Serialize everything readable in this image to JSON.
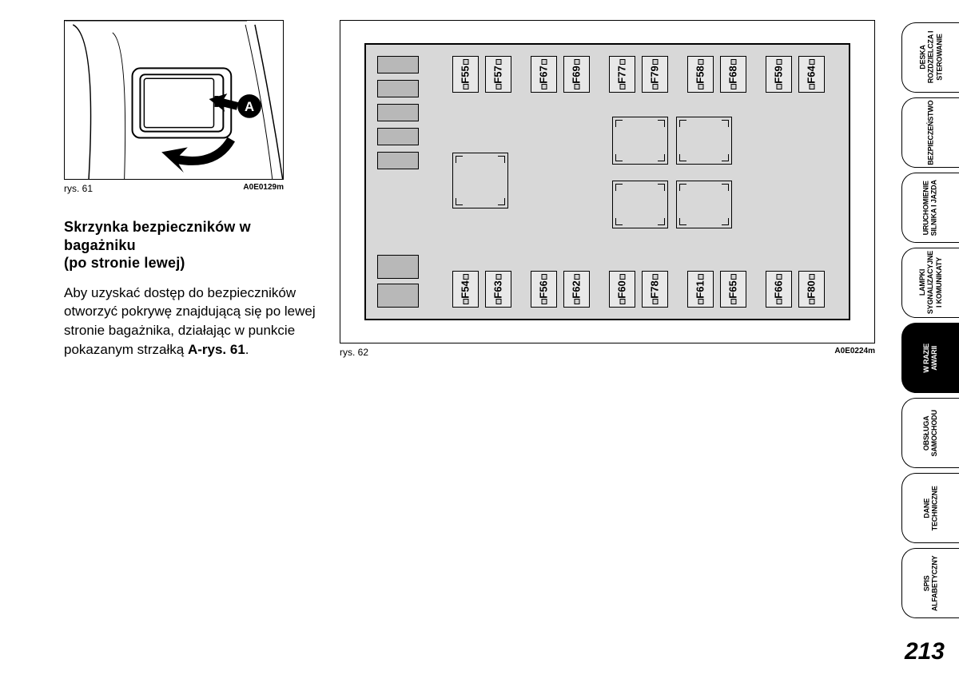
{
  "fig61": {
    "caption": "rys. 61",
    "code": "A0E0129m",
    "label_A": "A"
  },
  "fig62": {
    "caption": "rys. 62",
    "code": "A0E0224m"
  },
  "heading": {
    "line1": "Skrzynka bezpieczników w",
    "line2": "bagażniku",
    "line3": "(po stronie lewej)"
  },
  "body": {
    "text": "Aby uzyskać dostęp do bezpieczników otworzyć pokrywę znajdującą się po lewej stronie bagażnika, działając w punkcie pokazanym strzałką ",
    "bold": "A-rys. 61",
    "tail": "."
  },
  "fuses_top": [
    "F55",
    "F57",
    "F67",
    "F69",
    "F77",
    "F79",
    "F58",
    "F68",
    "F59",
    "F64"
  ],
  "fuses_bottom": [
    "F54",
    "F63",
    "F56",
    "F62",
    "F60",
    "F78",
    "F61",
    "F65",
    "F66",
    "F80"
  ],
  "tabs": [
    {
      "label": "DESKA\nROZDZIELCZA I\nSTEROWANIE",
      "active": false
    },
    {
      "label": "BEZPIECZEŃSTWO",
      "active": false
    },
    {
      "label": "URUCHOMIENIE\nSILNIKA I JAZDA",
      "active": false
    },
    {
      "label": "LAMPKI\nSYGNALIZACYJNE\nI KOMUNIKATY",
      "active": false
    },
    {
      "label": "W RAZIE\nAWARII",
      "active": true
    },
    {
      "label": "OBSŁUGA\nSAMOCHODU",
      "active": false
    },
    {
      "label": "DANE\nTECHNICZNE",
      "active": false
    },
    {
      "label": "SPIS\nALFABETYCZNY",
      "active": false
    }
  ],
  "page_number": "213",
  "colors": {
    "fusebox_bg": "#d8d8d8",
    "slot_bg": "#b8b8b8",
    "fuse_bg": "#e8e8e8"
  }
}
